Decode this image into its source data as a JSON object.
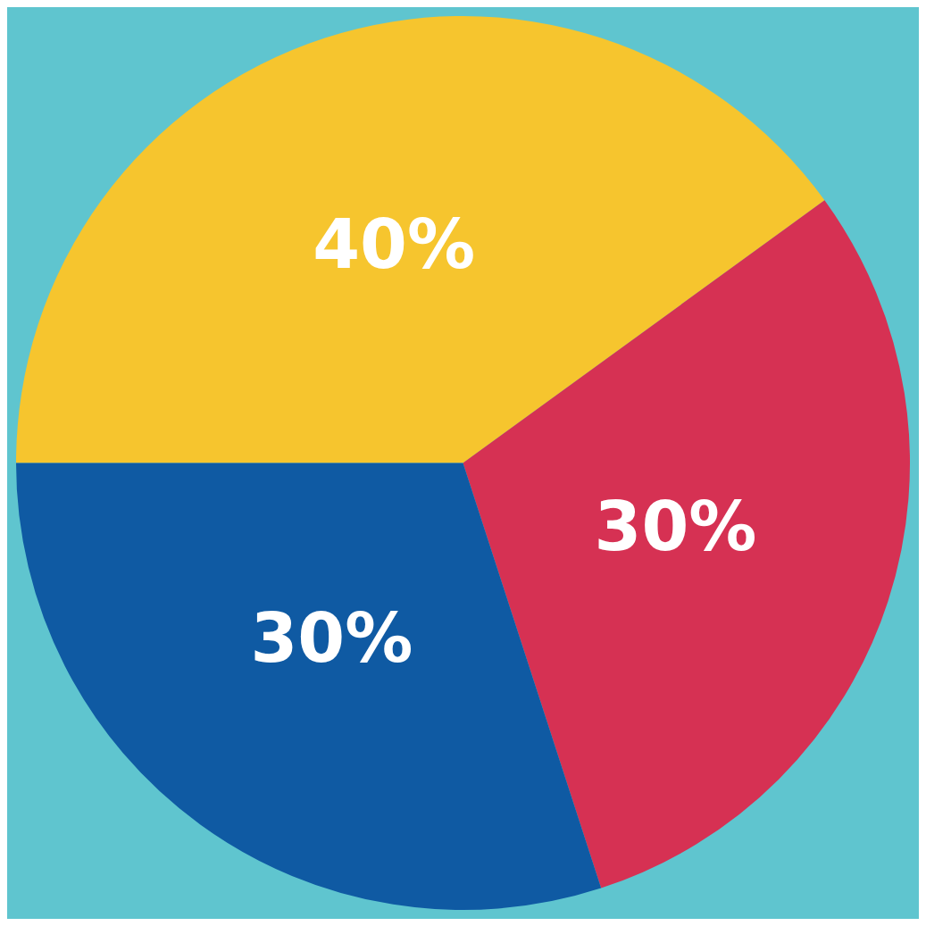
{
  "chart_data": {
    "type": "pie",
    "categories": [
      null,
      null,
      null
    ],
    "values": [
      40,
      30,
      30
    ],
    "colors": [
      "#f6c52e",
      "#d63153",
      "#0f5aa3"
    ],
    "value_labels": [
      "40%",
      "30%",
      "30%"
    ]
  }
}
